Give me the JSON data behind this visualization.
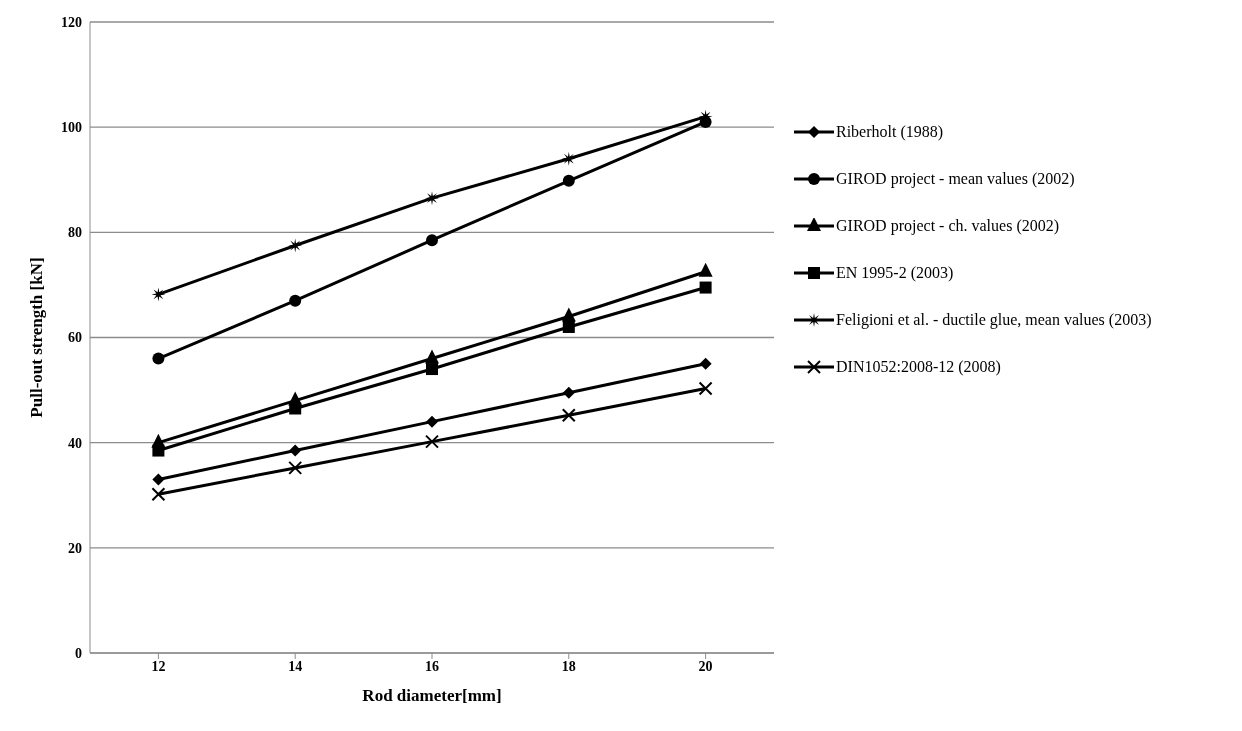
{
  "chart_data": {
    "type": "line",
    "xlabel": "Rod diameter[mm]",
    "ylabel": "Pull-out strength [kN]",
    "categories": [
      "12",
      "14",
      "16",
      "18",
      "20"
    ],
    "ylim": [
      0,
      120
    ],
    "yticks": [
      0,
      20,
      40,
      60,
      80,
      100,
      120
    ],
    "grid": "y",
    "legend": "right",
    "line_style": "solid",
    "series": [
      {
        "name": "Riberholt (1988)",
        "color": "#000000",
        "marker": "diamond",
        "values": [
          33,
          38.5,
          44,
          49.5,
          55
        ]
      },
      {
        "name": "GIROD project - mean values (2002)",
        "color": "#000000",
        "marker": "circle",
        "values": [
          56,
          67,
          78.5,
          89.8,
          101
        ]
      },
      {
        "name": "GIROD project - ch. values (2002)",
        "color": "#000000",
        "marker": "triangle",
        "values": [
          40,
          48,
          56,
          64,
          72.5
        ]
      },
      {
        "name": "EN 1995-2 (2003)",
        "color": "#000000",
        "marker": "square",
        "values": [
          38.5,
          46.5,
          54,
          62,
          69.5
        ]
      },
      {
        "name": "Feligioni et al. - ductile glue, mean values (2003)",
        "color": "#000000",
        "marker": "star",
        "values": [
          68.2,
          77.5,
          86.5,
          94,
          102
        ]
      },
      {
        "name": "DIN1052:2008-12 (2008)",
        "color": "#000000",
        "marker": "cross",
        "values": [
          30.2,
          35.2,
          40.2,
          45.2,
          50.3
        ]
      }
    ]
  }
}
